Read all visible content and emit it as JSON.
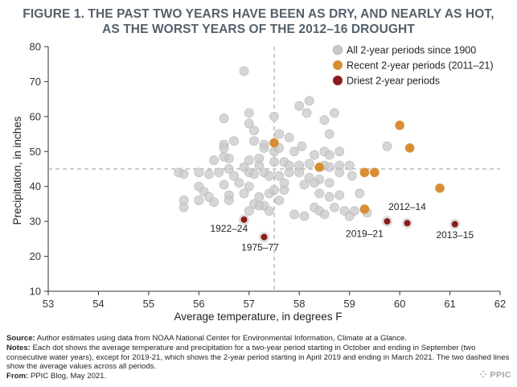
{
  "title_line1": "FIGURE 1. THE PAST TWO YEARS HAVE BEEN AS DRY, AND NEARLY AS HOT,",
  "title_line2": "AS THE WORST YEARS OF THE 2012–16 DROUGHT",
  "chart_data": {
    "type": "scatter",
    "xlabel": "Average temperature, in degrees F",
    "ylabel": "Precipitation, in inches",
    "xlim": [
      53,
      62
    ],
    "ylim": [
      10,
      80
    ],
    "xticks": [
      53,
      54,
      55,
      56,
      57,
      58,
      59,
      60,
      61,
      62
    ],
    "yticks": [
      10,
      20,
      30,
      40,
      50,
      60,
      70,
      80
    ],
    "mean_lines": {
      "x": 57.5,
      "y": 45
    },
    "legend_position": "top-right",
    "colors": {
      "all": "#c8c8c8",
      "recent": "#d88f33",
      "driest": "#8c1c1c",
      "ring": "#dedede",
      "dashed": "#9a9a9a"
    },
    "series": [
      {
        "name": "All 2-year periods since 1900",
        "key": "all",
        "points": [
          [
            56.9,
            73
          ],
          [
            57.5,
            60
          ],
          [
            58.0,
            63
          ],
          [
            58.2,
            64.5
          ],
          [
            58.5,
            59
          ],
          [
            58.7,
            61
          ],
          [
            57.0,
            61
          ],
          [
            56.5,
            59.5
          ],
          [
            57.1,
            56
          ],
          [
            57.6,
            55
          ],
          [
            57.0,
            58
          ],
          [
            57.8,
            54
          ],
          [
            57.3,
            52
          ],
          [
            56.5,
            52
          ],
          [
            56.5,
            51
          ],
          [
            56.7,
            53
          ],
          [
            57.1,
            53
          ],
          [
            57.3,
            51
          ],
          [
            57.5,
            50
          ],
          [
            57.6,
            51
          ],
          [
            57.9,
            50
          ],
          [
            58.05,
            51.5
          ],
          [
            58.3,
            49
          ],
          [
            58.5,
            50
          ],
          [
            58.6,
            49
          ],
          [
            58.8,
            50
          ],
          [
            59.75,
            51.5
          ],
          [
            58.6,
            55
          ],
          [
            58.15,
            61
          ],
          [
            56.6,
            48
          ],
          [
            56.5,
            48.5
          ],
          [
            56.3,
            47.5
          ],
          [
            57.0,
            47.5
          ],
          [
            57.2,
            48
          ],
          [
            57.5,
            47
          ],
          [
            57.7,
            47
          ],
          [
            57.8,
            46
          ],
          [
            58.0,
            46
          ],
          [
            58.2,
            46.5
          ],
          [
            58.5,
            46
          ],
          [
            58.6,
            45.5
          ],
          [
            58.8,
            46
          ],
          [
            59.0,
            46
          ],
          [
            56.0,
            44
          ],
          [
            56.2,
            43.5
          ],
          [
            56.4,
            44
          ],
          [
            56.6,
            45
          ],
          [
            56.7,
            43
          ],
          [
            57.0,
            44
          ],
          [
            57.1,
            43.5
          ],
          [
            57.3,
            44
          ],
          [
            57.4,
            43
          ],
          [
            57.6,
            43
          ],
          [
            57.8,
            44
          ],
          [
            58.0,
            44
          ],
          [
            58.2,
            42.5
          ],
          [
            58.4,
            42
          ],
          [
            58.6,
            41
          ],
          [
            58.8,
            44
          ],
          [
            59.05,
            43
          ],
          [
            55.6,
            44
          ],
          [
            55.7,
            43.5
          ],
          [
            56.0,
            40
          ],
          [
            56.1,
            38.5
          ],
          [
            56.2,
            37
          ],
          [
            56.5,
            40.5
          ],
          [
            56.6,
            37.5
          ],
          [
            56.8,
            41
          ],
          [
            56.9,
            38
          ],
          [
            57.0,
            40
          ],
          [
            57.2,
            37
          ],
          [
            57.4,
            38
          ],
          [
            57.5,
            39
          ],
          [
            57.7,
            39
          ],
          [
            58.1,
            40.5
          ],
          [
            58.3,
            41
          ],
          [
            58.4,
            38
          ],
          [
            58.6,
            37
          ],
          [
            58.8,
            37.5
          ],
          [
            59.2,
            38
          ],
          [
            56.0,
            36
          ],
          [
            56.3,
            35.5
          ],
          [
            56.6,
            36
          ],
          [
            57.1,
            35
          ],
          [
            57.3,
            34.5
          ],
          [
            57.4,
            33
          ],
          [
            57.6,
            36
          ],
          [
            57.9,
            32
          ],
          [
            58.1,
            31.5
          ],
          [
            58.3,
            34
          ],
          [
            58.4,
            33
          ],
          [
            58.5,
            32
          ],
          [
            58.7,
            34
          ],
          [
            58.9,
            33
          ],
          [
            59.0,
            31.5
          ],
          [
            59.1,
            33
          ],
          [
            59.35,
            32.5
          ],
          [
            55.7,
            36
          ],
          [
            55.7,
            34
          ],
          [
            57.0,
            33
          ],
          [
            57.2,
            34.5
          ],
          [
            57.7,
            41
          ],
          [
            56.9,
            45.5
          ],
          [
            57.2,
            46
          ]
        ]
      },
      {
        "name": "Recent 2-year periods (2011–21)",
        "key": "recent",
        "points": [
          [
            57.5,
            52.5
          ],
          [
            58.4,
            45.5
          ],
          [
            59.3,
            44
          ],
          [
            59.5,
            44
          ],
          [
            60.0,
            57.5
          ],
          [
            60.2,
            51
          ],
          [
            60.8,
            39.5
          ],
          [
            59.3,
            33.5
          ]
        ]
      },
      {
        "name": "Driest 2-year periods",
        "key": "driest",
        "points": [
          [
            56.9,
            30.5
          ],
          [
            57.3,
            25.5
          ],
          [
            59.75,
            30
          ],
          [
            60.15,
            29.5
          ],
          [
            61.1,
            29.2
          ]
        ]
      }
    ],
    "annotations": [
      {
        "text": "1922–24",
        "x": 56.6,
        "y": 27
      },
      {
        "text": "1975–77",
        "x": 57.22,
        "y": 21.6
      },
      {
        "text": "2012–14",
        "x": 60.15,
        "y": 33.2
      },
      {
        "text": "2019–21",
        "x": 59.3,
        "y": 25.6
      },
      {
        "text": "2013–15",
        "x": 61.1,
        "y": 25.2
      }
    ]
  },
  "notes": {
    "source_label": "Source:",
    "source_text": "Author estimates using data from NOAA National Center for Environmental Information, Climate at a Glance.",
    "notes_label": "Notes:",
    "notes_text": "Each dot shows the average temperature and precipitation for a two-year period starting in October and ending in September (two consecutive water years), except for 2019-21, which shows the 2-year period starting in April 2019 and ending in March 2021. The two dashed lines show the average values across all periods.",
    "from_label": "From:",
    "from_text": "PPIC Blog, May 2021."
  },
  "logo_text": "⁘ PPIC"
}
